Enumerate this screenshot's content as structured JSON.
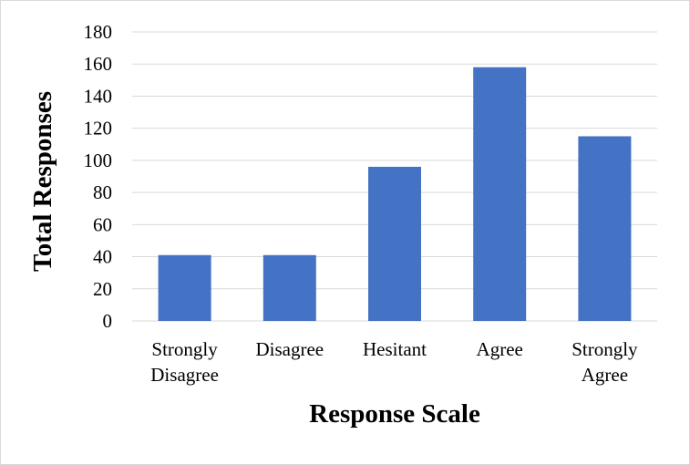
{
  "chart_data": {
    "type": "bar",
    "title": "",
    "xlabel": "Response Scale",
    "ylabel": "Total Responses",
    "categories": [
      "Strongly Disagree",
      "Disagree",
      "Hesitant",
      "Agree",
      "Strongly Agree"
    ],
    "category_lines": [
      [
        "Strongly",
        "Disagree"
      ],
      [
        "Disagree"
      ],
      [
        "Hesitant"
      ],
      [
        "Agree"
      ],
      [
        "Strongly",
        "Agree"
      ]
    ],
    "values": [
      41,
      41,
      96,
      158,
      115
    ],
    "ylim": [
      0,
      180
    ],
    "yticks": [
      0,
      20,
      40,
      60,
      80,
      100,
      120,
      140,
      160,
      180
    ],
    "grid": true,
    "legend": "none",
    "bar_color": "#4472c4",
    "grid_color": "#d9d9d9"
  }
}
